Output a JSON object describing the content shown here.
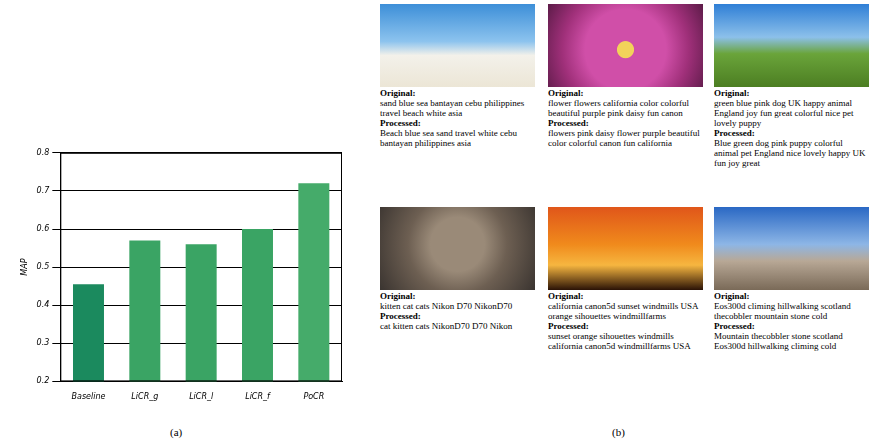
{
  "chart_data": {
    "type": "bar",
    "categories": [
      "Baseline",
      "LiCR_g",
      "LiCR_l",
      "LiCR_f",
      "PoCR"
    ],
    "values": [
      0.455,
      0.57,
      0.56,
      0.6,
      0.72
    ],
    "colors": [
      "#1b8a5e",
      "#3aa464",
      "#3aa464",
      "#3aa464",
      "#45ab6a"
    ],
    "y_label": "MAP",
    "ylim": [
      0.2,
      0.8
    ],
    "yticks": [
      0.2,
      0.3,
      0.4,
      0.5,
      0.6,
      0.7,
      0.8
    ],
    "grid": true
  },
  "panel_labels": [
    "(a)",
    "(b)"
  ],
  "examples": {
    "original_heading": "Original:",
    "processed_heading": "Processed:",
    "items": [
      {
        "original": "sand blue sea bantayan cebu philippines travel beach white asia",
        "processed": "Beach blue sea sand travel white cebu bantayan philippines asia"
      },
      {
        "original": "flower flowers california color colorful beautiful purple pink daisy fun canon",
        "processed": "flowers pink daisy flower purple beautiful color colorful canon fun california"
      },
      {
        "original": "green blue pink dog UK happy animal England joy fun great colorful nice pet lovely puppy",
        "processed": "Blue green dog pink puppy colorful animal pet England nice lovely happy UK fun joy great"
      },
      {
        "original": "kitten cat cats Nikon D70 NikonD70",
        "processed": "cat kitten cats NikonD70 D70 Nikon"
      },
      {
        "original": "california canon5d sunset windmills USA orange sihouettes windmillfarms",
        "processed": "sunset orange sihouettes windmills california canon5d windmillfarms USA"
      },
      {
        "original": "Eos300d climing hillwalking scotland thecobbler mountain stone cold",
        "processed": "Mountain thecobbler stone scotland Eos300d hillwalking climing cold"
      }
    ]
  }
}
